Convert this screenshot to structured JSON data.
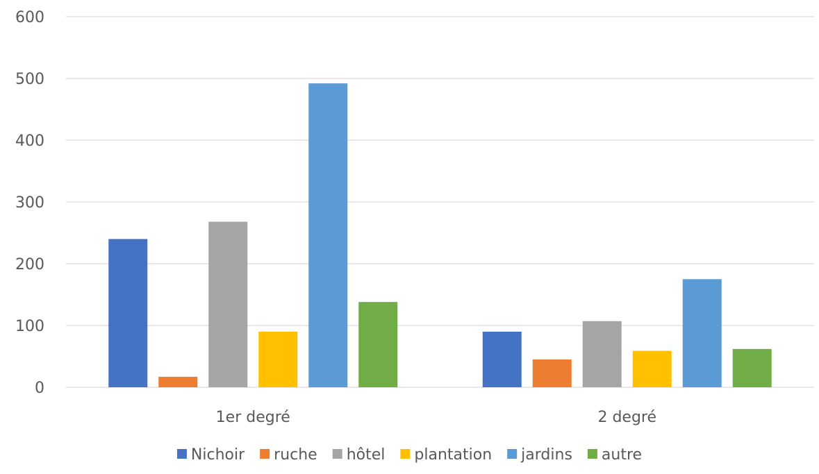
{
  "chart_data": {
    "type": "bar",
    "title": "",
    "xlabel": "",
    "ylabel": "",
    "ylim": [
      0,
      600
    ],
    "yticks": [
      0,
      100,
      200,
      300,
      400,
      500,
      600
    ],
    "grid": true,
    "legend_position": "bottom",
    "categories": [
      "1er degré",
      "2 degré"
    ],
    "series": [
      {
        "name": "Nichoir",
        "color": "#4472C4",
        "values": [
          240,
          90
        ]
      },
      {
        "name": "ruche",
        "color": "#ED7D31",
        "values": [
          17,
          45
        ]
      },
      {
        "name": "hôtel",
        "color": "#A5A5A5",
        "values": [
          268,
          107
        ]
      },
      {
        "name": "plantation",
        "color": "#FFC000",
        "values": [
          90,
          59
        ]
      },
      {
        "name": "jardins",
        "color": "#5B9BD5",
        "values": [
          492,
          175
        ]
      },
      {
        "name": "autre",
        "color": "#70AD47",
        "values": [
          138,
          62
        ]
      }
    ]
  },
  "colors": {
    "gridline": "#D9D9D9",
    "axis_text": "#595959"
  }
}
